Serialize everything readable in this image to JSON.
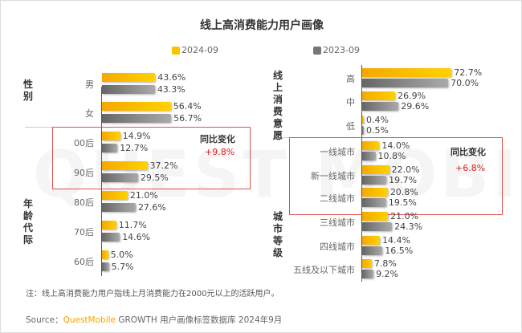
{
  "title": "线上高消费能力用户画像",
  "legend": [
    {
      "label": "2024-09",
      "color": "#FFC000"
    },
    {
      "label": "2023-09",
      "color": "#808080"
    }
  ],
  "watermark": "QUEST MOBILE",
  "chart_data": [
    {
      "type": "bar",
      "orientation": "horizontal",
      "groups": [
        {
          "label": "性别",
          "categories": [
            "男",
            "女"
          ]
        },
        {
          "label": "年龄代际",
          "categories": [
            "00后",
            "90后",
            "80后",
            "70后",
            "60后"
          ]
        }
      ],
      "categories": [
        "男",
        "女",
        "00后",
        "90后",
        "80后",
        "70后",
        "60后"
      ],
      "series": [
        {
          "name": "2024-09",
          "values": [
            43.6,
            56.4,
            14.9,
            37.2,
            21.0,
            11.7,
            5.0
          ],
          "labels": [
            "43.6%",
            "56.4%",
            "14.9%",
            "37.2%",
            "21.0%",
            "11.7%",
            "5.0%"
          ]
        },
        {
          "name": "2023-09",
          "values": [
            43.3,
            56.7,
            12.7,
            29.5,
            27.6,
            14.6,
            5.7
          ],
          "labels": [
            "43.3%",
            "56.7%",
            "12.7%",
            "29.5%",
            "27.6%",
            "14.6%",
            "5.7%"
          ]
        }
      ],
      "annotation": {
        "label": "同比变化",
        "value": "+9.8%"
      }
    },
    {
      "type": "bar",
      "orientation": "horizontal",
      "groups": [
        {
          "label": "线上消费意愿",
          "categories": [
            "高",
            "中",
            "低"
          ]
        },
        {
          "label": "城市等级",
          "categories": [
            "一线城市",
            "新一线城市",
            "二线城市",
            "三线城市",
            "四线城市",
            "五线及以下城市"
          ]
        }
      ],
      "categories": [
        "高",
        "中",
        "低",
        "一线城市",
        "新一线城市",
        "二线城市",
        "三线城市",
        "四线城市",
        "五线及以下城市"
      ],
      "series": [
        {
          "name": "2024-09",
          "values": [
            72.7,
            26.9,
            0.4,
            14.0,
            22.0,
            20.8,
            21.0,
            14.4,
            7.8
          ],
          "labels": [
            "72.7%",
            "26.9%",
            "0.4%",
            "14.0%",
            "22.0%",
            "20.8%",
            "21.0%",
            "14.4%",
            "7.8%"
          ]
        },
        {
          "name": "2023-09",
          "values": [
            70.0,
            29.6,
            0.5,
            10.8,
            19.7,
            19.5,
            24.3,
            16.5,
            9.2
          ],
          "labels": [
            "70.0%",
            "29.6%",
            "0.5%",
            "10.8%",
            "19.7%",
            "19.5%",
            "24.3%",
            "16.5%",
            "9.2%"
          ]
        }
      ],
      "annotation": {
        "label": "同比变化",
        "value": "+6.8%"
      }
    }
  ],
  "note": "注：线上高消费能力用户指线上月消费能力在2000元以上的活跃用户。",
  "source": {
    "prefix": "Source：",
    "brand": "QuestMobile",
    "text": " GROWTH 用户画像标签数据库 2024年9月"
  }
}
